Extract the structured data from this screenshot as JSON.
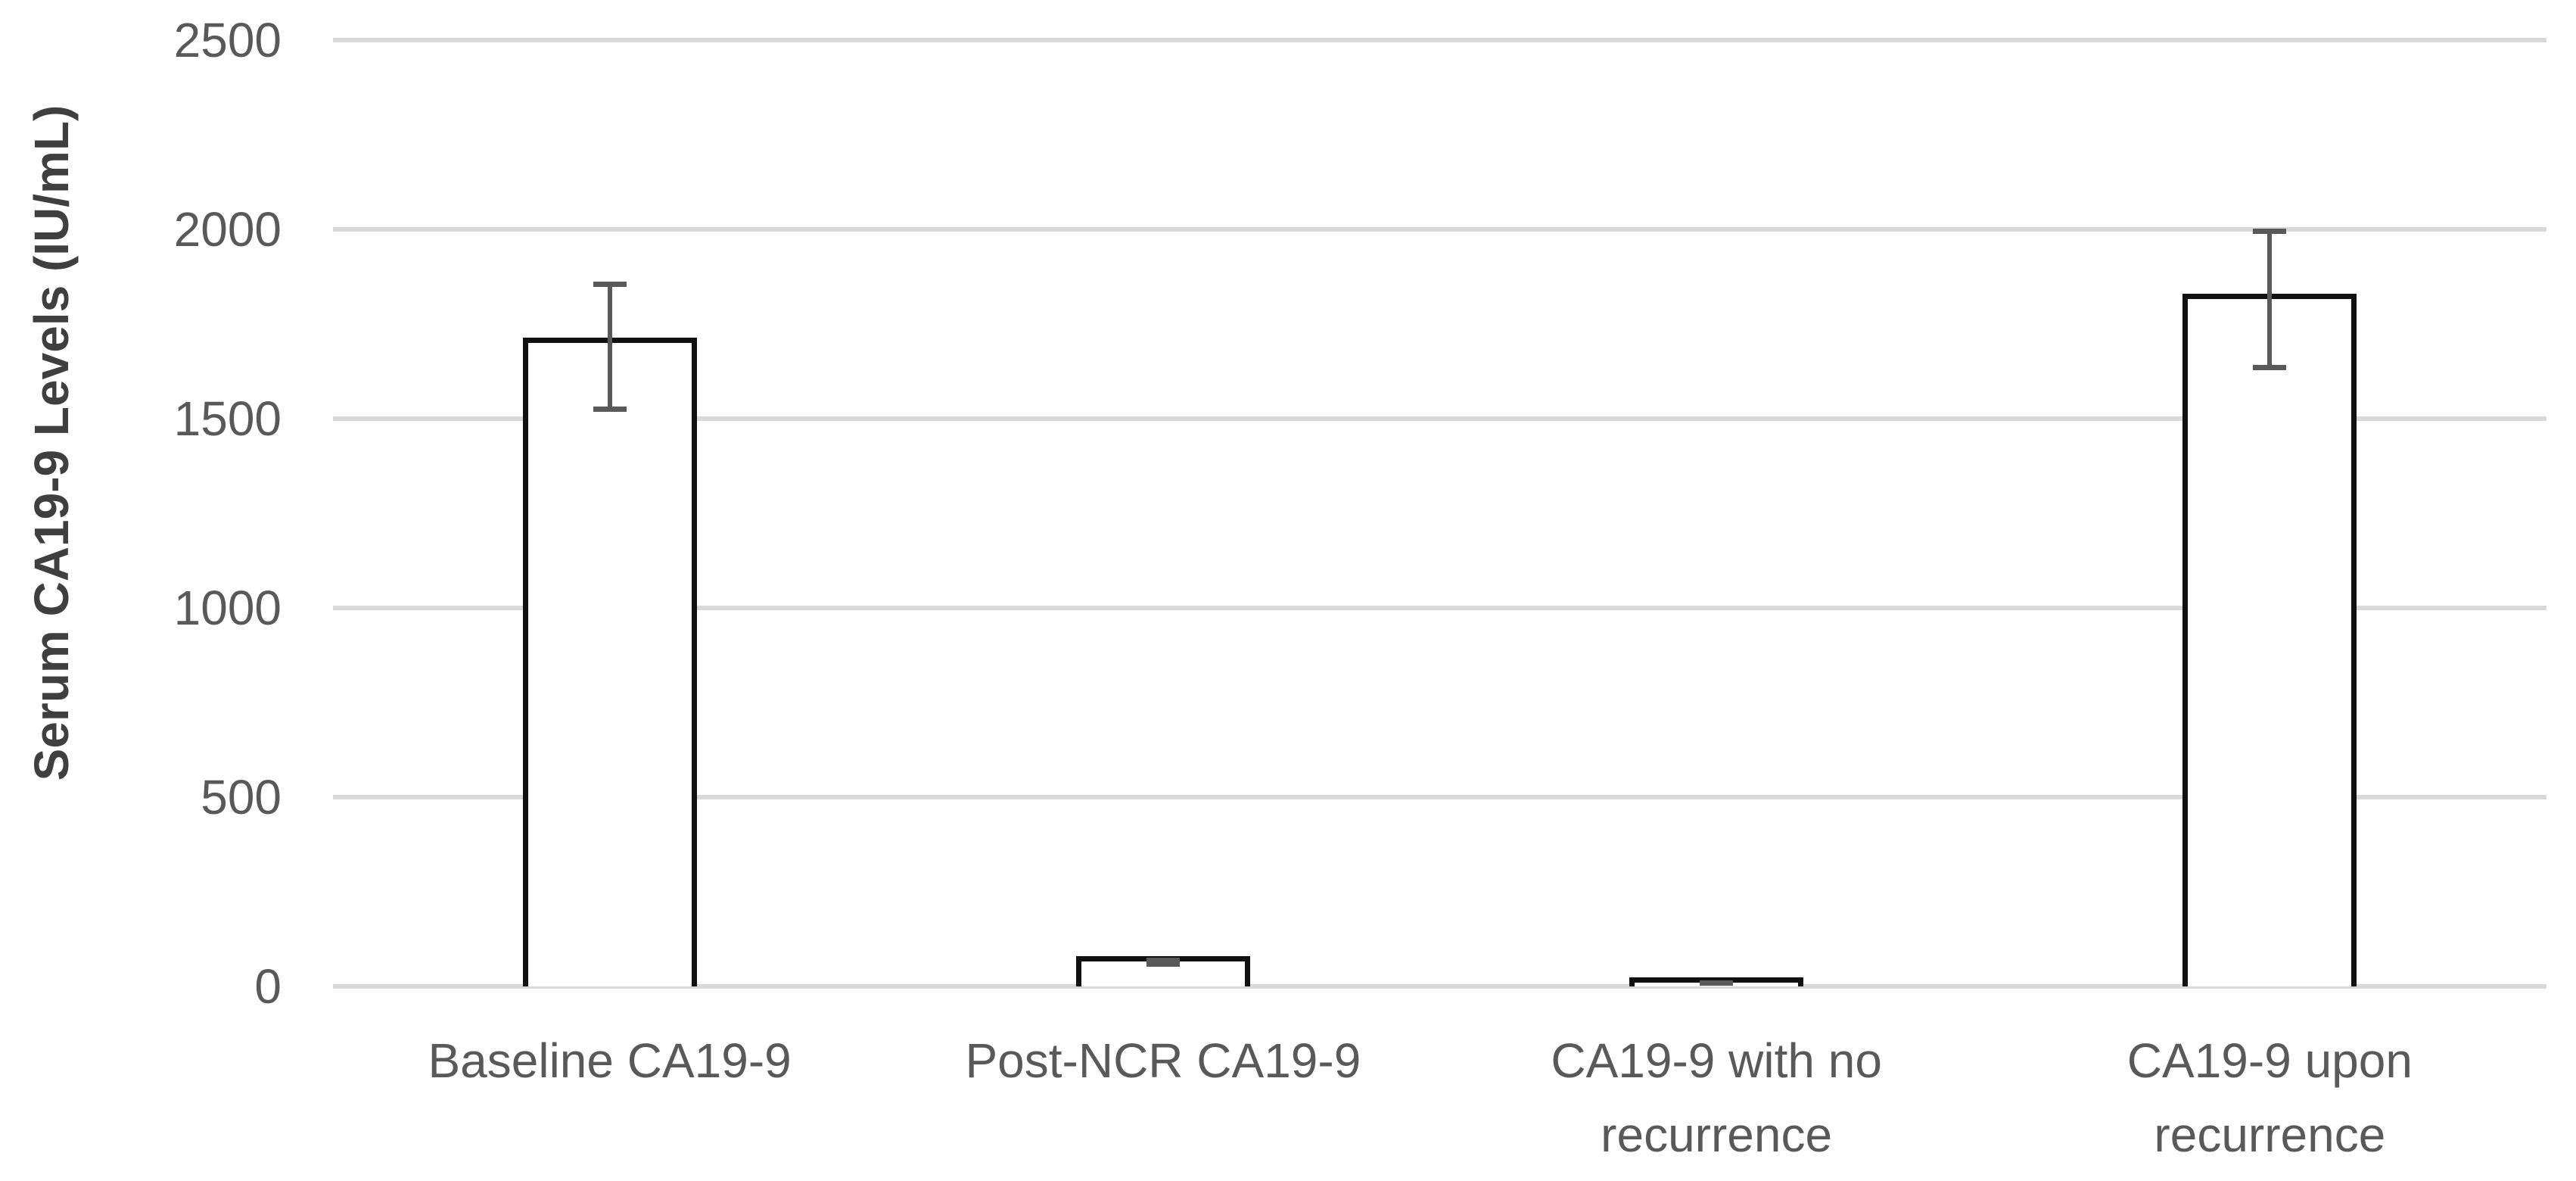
{
  "chart_data": {
    "type": "bar",
    "title": "",
    "xlabel": "",
    "ylabel": "Serum CA19-9 Levels (IU/mL)",
    "categories": [
      "Baseline CA19-9",
      "Post-NCR CA19-9",
      "CA19-9 with no recurrence",
      "CA19-9 upon recurrence"
    ],
    "values": [
      1700,
      65,
      10,
      1815
    ],
    "error_bars": {
      "top": [
        1860,
        75,
        15,
        2000
      ],
      "bottom": [
        1520,
        55,
        5,
        1630
      ]
    },
    "yticks": [
      "0",
      "500",
      "1000",
      "1500",
      "2000",
      "2500"
    ],
    "ytick_values": [
      0,
      500,
      1000,
      1500,
      2000,
      2500
    ],
    "ylim": [
      0,
      2500
    ],
    "legend": null,
    "grid": "horizontal",
    "colors": {
      "bar_fill": "#ffffff",
      "bar_border": "#111111",
      "error_bar": "#595959",
      "gridline": "#d9d9d9",
      "tick_text": "#595959",
      "axis_title_text": "#3f3f3f",
      "background": "#ffffff"
    }
  }
}
